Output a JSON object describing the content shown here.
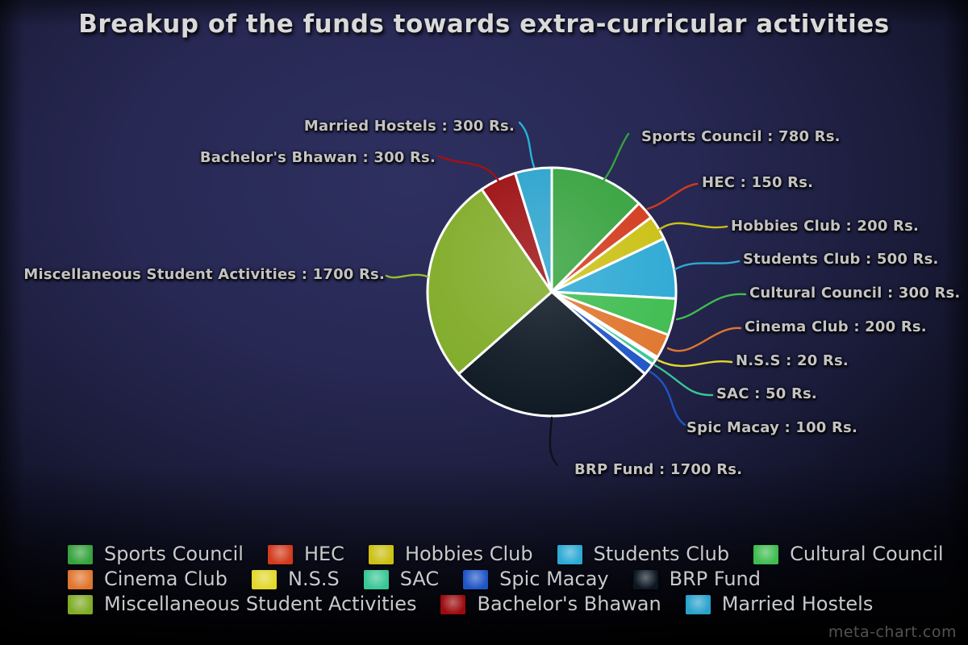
{
  "chart_data": {
    "type": "pie",
    "title": "Breakup of the funds towards extra-curricular activities",
    "unit": "Rs.",
    "legend_position": "bottom",
    "label_format": "{label} : {value} Rs.",
    "slices": [
      {
        "label": "Sports Council",
        "value": 780,
        "color": "#35a23d"
      },
      {
        "label": "HEC",
        "value": 150,
        "color": "#d23a1c"
      },
      {
        "label": "Hobbies Club",
        "value": 200,
        "color": "#cbc013"
      },
      {
        "label": "Students Club",
        "value": 500,
        "color": "#2ca9d4"
      },
      {
        "label": "Cultural Council",
        "value": 300,
        "color": "#3fbc50"
      },
      {
        "label": "Cinema Club",
        "value": 200,
        "color": "#e0762e"
      },
      {
        "label": "N.S.S",
        "value": 20,
        "color": "#e2d82b"
      },
      {
        "label": "SAC",
        "value": 50,
        "color": "#38c795"
      },
      {
        "label": "Spic Macay",
        "value": 100,
        "color": "#1f55c6"
      },
      {
        "label": "BRP Fund",
        "value": 1700,
        "color": "#0c1722"
      },
      {
        "label": "Miscellaneous Student Activities",
        "value": 1700,
        "color": "#7fab26"
      },
      {
        "label": "Bachelor's Bhawan",
        "value": 300,
        "color": "#9b0b0e"
      },
      {
        "label": "Married Hostels",
        "value": 300,
        "color": "#29a2cc"
      }
    ]
  },
  "watermark": "meta-chart.com"
}
